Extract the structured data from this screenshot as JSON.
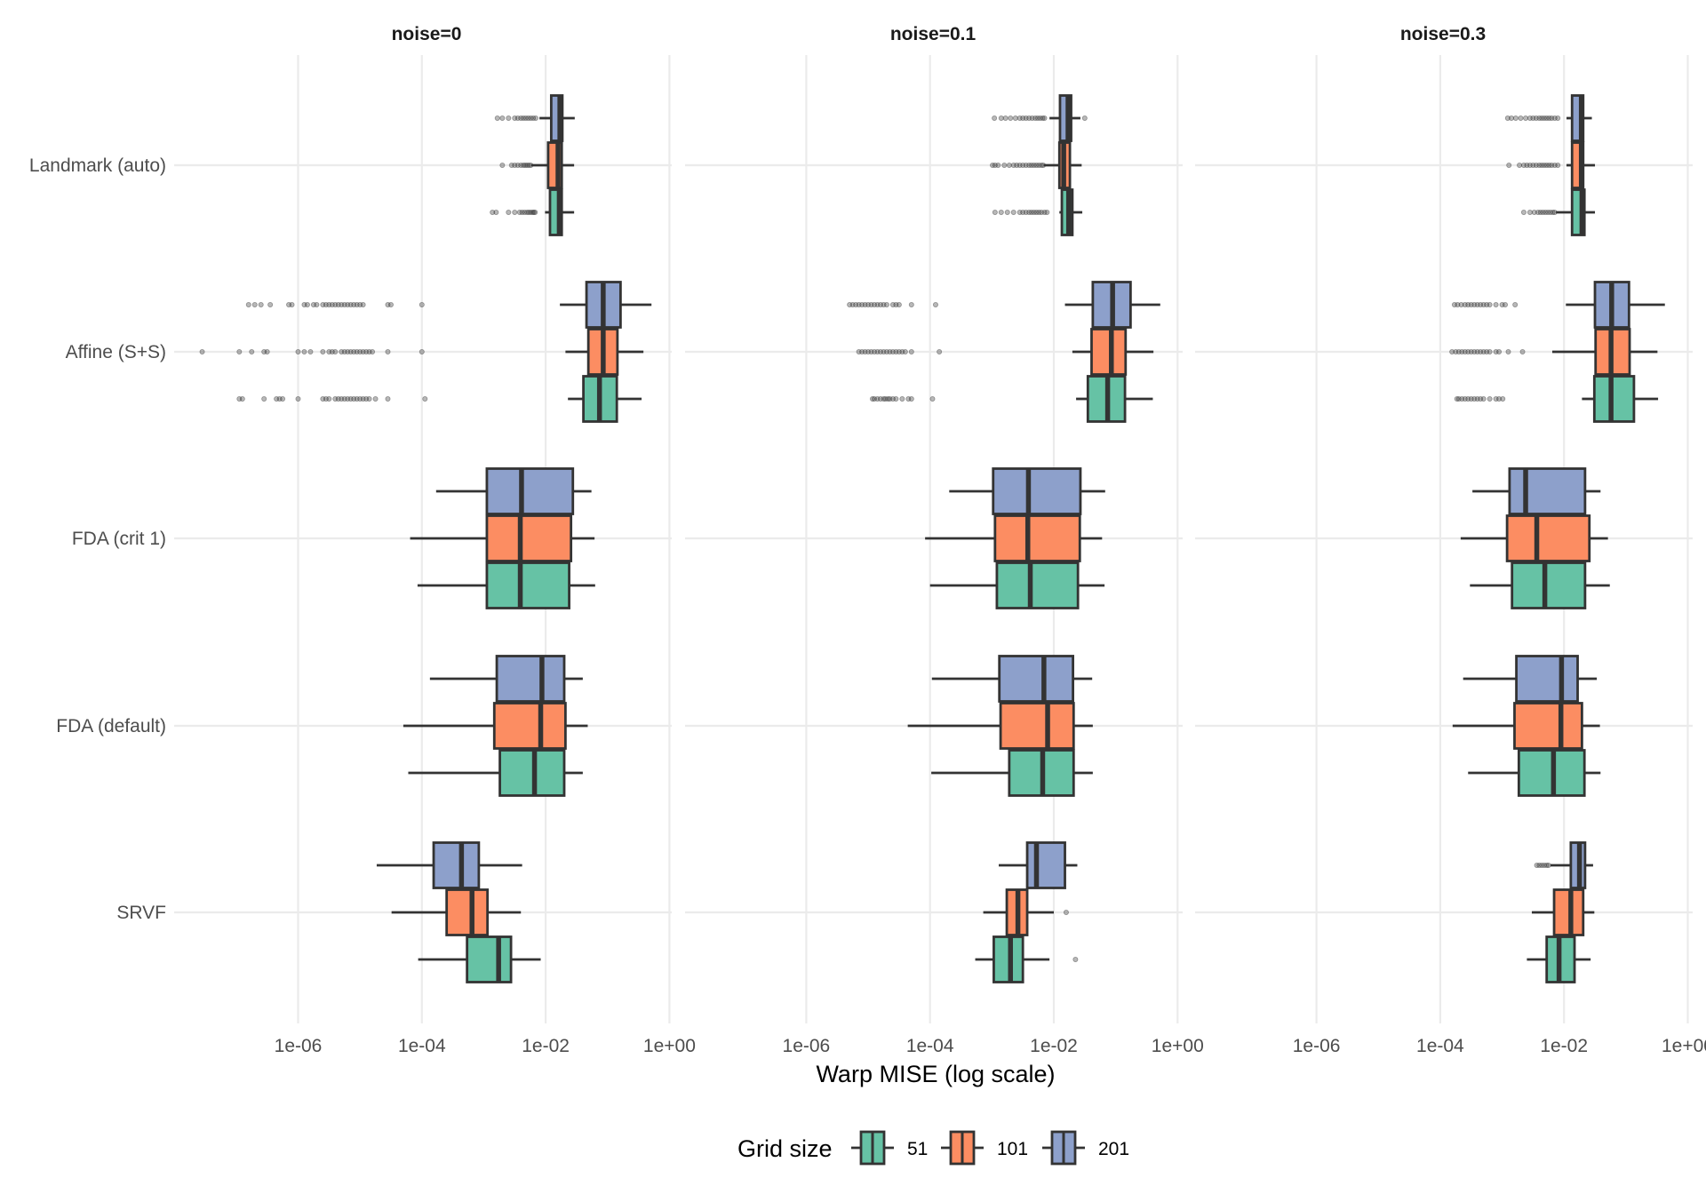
{
  "chart_data": {
    "type": "boxplot",
    "orientation": "horizontal",
    "xlabel": "Warp MISE (log scale)",
    "ylabel": "",
    "x_scale": "log10",
    "x_ticks": [
      "1e-06",
      "1e-04",
      "1e-02",
      "1e+00"
    ],
    "x_tick_values": [
      -6,
      -4,
      -2,
      0
    ],
    "xlim_log10": [
      -8.0,
      0.1
    ],
    "grid": true,
    "facets": [
      "noise=0",
      "noise=0.1",
      "noise=0.3"
    ],
    "categories": [
      "Landmark (auto)",
      "Affine (S+S)",
      "FDA (crit 1)",
      "FDA (default)",
      "SRVF"
    ],
    "legend": {
      "title": "Grid size",
      "position": "bottom",
      "entries": [
        {
          "label": "51",
          "color": "#66c2a5"
        },
        {
          "label": "101",
          "color": "#fc8d62"
        },
        {
          "label": "201",
          "color": "#8da0cb"
        }
      ]
    },
    "note": "box stats given as log10(Warp MISE): [whisker_low, q1, median, q3, whisker_high]; outliers as log10 values",
    "panels": [
      {
        "facet": "noise=0",
        "groups": {
          "Landmark (auto)": {
            "51": {
              "stats": [
                -2.01,
                -1.93,
                -1.78,
                -1.74,
                -1.54
              ],
              "outliers": [
                -2.86,
                -2.8,
                -2.6,
                -2.5,
                -2.42,
                -2.38,
                -2.34,
                -2.3,
                -2.27,
                -2.24,
                -2.21,
                -2.19,
                -2.17
              ]
            },
            "101": {
              "stats": [
                -2.23,
                -1.96,
                -1.8,
                -1.74,
                -1.54
              ],
              "outliers": [
                -2.7,
                -2.55,
                -2.5,
                -2.45,
                -2.4,
                -2.36,
                -2.33,
                -2.3,
                -2.27,
                -2.24
              ]
            },
            "201": {
              "stats": [
                -2.1,
                -1.91,
                -1.77,
                -1.73,
                -1.53
              ],
              "outliers": [
                -2.78,
                -2.7,
                -2.6,
                -2.5,
                -2.45,
                -2.4,
                -2.36,
                -2.32,
                -2.28,
                -2.24,
                -2.2,
                -2.16
              ]
            }
          },
          "Affine (S+S)": {
            "51": {
              "stats": [
                -1.64,
                -1.39,
                -1.13,
                -0.85,
                -0.45
              ],
              "outliers": [
                -6.95,
                -6.9,
                -6.55,
                -6.35,
                -6.3,
                -6.25,
                -6.0,
                -5.6,
                -5.55,
                -5.5,
                -5.4,
                -5.35,
                -5.3,
                -5.25,
                -5.2,
                -5.15,
                -5.1,
                -5.05,
                -5.0,
                -4.95,
                -4.9,
                -4.85,
                -4.75,
                -4.55,
                -3.95
              ]
            },
            "101": {
              "stats": [
                -1.68,
                -1.31,
                -1.07,
                -0.84,
                -0.42
              ],
              "outliers": [
                -7.55,
                -6.95,
                -6.75,
                -6.55,
                -6.5,
                -6.0,
                -5.9,
                -5.8,
                -5.6,
                -5.5,
                -5.45,
                -5.4,
                -5.3,
                -5.25,
                -5.2,
                -5.15,
                -5.1,
                -5.05,
                -5.0,
                -4.95,
                -4.9,
                -4.85,
                -4.8,
                -4.55,
                -4.0
              ]
            },
            "201": {
              "stats": [
                -1.77,
                -1.34,
                -1.07,
                -0.79,
                -0.29
              ],
              "outliers": [
                -6.8,
                -6.7,
                -6.6,
                -6.45,
                -6.15,
                -6.1,
                -5.9,
                -5.85,
                -5.75,
                -5.7,
                -5.6,
                -5.55,
                -5.5,
                -5.45,
                -5.4,
                -5.35,
                -5.3,
                -5.25,
                -5.2,
                -5.15,
                -5.1,
                -5.05,
                -5.0,
                -4.95,
                -4.55,
                -4.5,
                -4.0
              ]
            }
          },
          "FDA (crit 1)": {
            "51": {
              "stats": [
                -4.07,
                -2.95,
                -2.41,
                -1.62,
                -1.2
              ],
              "outliers": []
            },
            "101": {
              "stats": [
                -4.19,
                -2.95,
                -2.41,
                -1.59,
                -1.21
              ],
              "outliers": []
            },
            "201": {
              "stats": [
                -3.77,
                -2.95,
                -2.39,
                -1.56,
                -1.26
              ],
              "outliers": []
            }
          },
          "FDA (default)": {
            "51": {
              "stats": [
                -4.22,
                -2.74,
                -2.18,
                -1.7,
                -1.4
              ],
              "outliers": []
            },
            "101": {
              "stats": [
                -4.3,
                -2.83,
                -2.08,
                -1.68,
                -1.32
              ],
              "outliers": []
            },
            "201": {
              "stats": [
                -3.87,
                -2.79,
                -2.06,
                -1.7,
                -1.4
              ],
              "outliers": []
            }
          },
          "SRVF": {
            "51": {
              "stats": [
                -4.06,
                -3.27,
                -2.76,
                -2.56,
                -2.08
              ],
              "outliers": []
            },
            "101": {
              "stats": [
                -4.49,
                -3.6,
                -3.19,
                -2.94,
                -2.4
              ],
              "outliers": []
            },
            "201": {
              "stats": [
                -4.73,
                -3.81,
                -3.36,
                -3.08,
                -2.38
              ],
              "outliers": []
            }
          }
        }
      },
      {
        "facet": "noise=0.1",
        "groups": {
          "Landmark (auto)": {
            "51": {
              "stats": [
                -1.91,
                -1.87,
                -1.76,
                -1.7,
                -1.54
              ],
              "outliers": [
                -2.95,
                -2.85,
                -2.75,
                -2.65,
                -2.55,
                -2.5,
                -2.45,
                -2.4,
                -2.36,
                -2.32,
                -2.28,
                -2.24,
                -2.2,
                -2.15,
                -2.11
              ]
            },
            "101": {
              "stats": [
                -2.16,
                -1.91,
                -1.84,
                -1.74,
                -1.55
              ],
              "outliers": [
                -2.99,
                -2.95,
                -2.9,
                -2.8,
                -2.72,
                -2.65,
                -2.6,
                -2.55,
                -2.5,
                -2.45,
                -2.4,
                -2.36,
                -2.32,
                -2.28,
                -2.24,
                -2.2,
                -2.17
              ]
            },
            "201": {
              "stats": [
                -2.07,
                -1.9,
                -1.77,
                -1.72,
                -1.57
              ],
              "outliers": [
                -2.96,
                -2.85,
                -2.78,
                -2.7,
                -2.62,
                -2.55,
                -2.5,
                -2.45,
                -2.4,
                -2.35,
                -2.3,
                -2.26,
                -2.22,
                -2.18,
                -2.15,
                -1.5
              ]
            }
          },
          "Affine (S+S)": {
            "51": {
              "stats": [
                -1.64,
                -1.45,
                -1.13,
                -0.85,
                -0.4
              ],
              "outliers": [
                -4.93,
                -4.9,
                -4.85,
                -4.8,
                -4.75,
                -4.72,
                -4.68,
                -4.65,
                -4.6,
                -4.55,
                -4.45,
                -4.35,
                -4.3,
                -3.96
              ]
            },
            "101": {
              "stats": [
                -1.7,
                -1.39,
                -1.07,
                -0.84,
                -0.39
              ],
              "outliers": [
                -5.15,
                -5.1,
                -5.05,
                -5.0,
                -4.95,
                -4.9,
                -4.85,
                -4.8,
                -4.75,
                -4.7,
                -4.65,
                -4.6,
                -4.55,
                -4.5,
                -4.45,
                -4.4,
                -4.3,
                -3.85
              ]
            },
            "201": {
              "stats": [
                -1.82,
                -1.37,
                -1.05,
                -0.76,
                -0.28
              ],
              "outliers": [
                -5.3,
                -5.25,
                -5.2,
                -5.15,
                -5.1,
                -5.05,
                -5.0,
                -4.95,
                -4.9,
                -4.85,
                -4.8,
                -4.75,
                -4.7,
                -4.6,
                -4.55,
                -4.5,
                -4.3,
                -3.91
              ]
            }
          },
          "FDA (crit 1)": {
            "51": {
              "stats": [
                -4.0,
                -2.92,
                -2.38,
                -1.61,
                -1.18
              ],
              "outliers": []
            },
            "101": {
              "stats": [
                -4.08,
                -2.95,
                -2.42,
                -1.58,
                -1.22
              ],
              "outliers": []
            },
            "201": {
              "stats": [
                -3.69,
                -2.98,
                -2.41,
                -1.57,
                -1.17
              ],
              "outliers": []
            }
          },
          "FDA (default)": {
            "51": {
              "stats": [
                -3.98,
                -2.72,
                -2.18,
                -1.68,
                -1.37
              ],
              "outliers": []
            },
            "101": {
              "stats": [
                -4.36,
                -2.86,
                -2.1,
                -1.68,
                -1.37
              ],
              "outliers": []
            },
            "201": {
              "stats": [
                -3.97,
                -2.88,
                -2.16,
                -1.69,
                -1.38
              ],
              "outliers": []
            }
          },
          "SRVF": {
            "51": {
              "stats": [
                -3.27,
                -2.97,
                -2.7,
                -2.5,
                -2.07
              ],
              "outliers": [
                -1.65
              ]
            },
            "101": {
              "stats": [
                -3.14,
                -2.76,
                -2.58,
                -2.43,
                -2.0
              ],
              "outliers": [
                -1.8
              ]
            },
            "201": {
              "stats": [
                -2.89,
                -2.43,
                -2.28,
                -1.82,
                -1.62
              ],
              "outliers": []
            }
          }
        }
      },
      {
        "facet": "noise=0.3",
        "groups": {
          "Landmark (auto)": {
            "51": {
              "stats": [
                -2.13,
                -1.87,
                -1.71,
                -1.67,
                -1.5
              ],
              "outliers": [
                -2.65,
                -2.55,
                -2.48,
                -2.42,
                -2.38,
                -2.34,
                -2.3,
                -2.26,
                -2.22,
                -2.18,
                -2.15
              ]
            },
            "101": {
              "stats": [
                -1.96,
                -1.87,
                -1.72,
                -1.69,
                -1.5
              ],
              "outliers": [
                -2.89,
                -2.72,
                -2.65,
                -2.6,
                -2.55,
                -2.5,
                -2.45,
                -2.4,
                -2.36,
                -2.32,
                -2.28,
                -2.24,
                -2.2,
                -2.15,
                -2.1
              ]
            },
            "201": {
              "stats": [
                -1.96,
                -1.87,
                -1.72,
                -1.69,
                -1.55
              ],
              "outliers": [
                -2.91,
                -2.85,
                -2.78,
                -2.7,
                -2.62,
                -2.55,
                -2.5,
                -2.45,
                -2.4,
                -2.36,
                -2.32,
                -2.28,
                -2.24,
                -2.2,
                -2.15,
                -2.1
              ]
            }
          },
          "Affine (S+S)": {
            "51": {
              "stats": [
                -1.71,
                -1.51,
                -1.24,
                -0.87,
                -0.48
              ],
              "outliers": [
                -3.73,
                -3.7,
                -3.65,
                -3.6,
                -3.55,
                -3.5,
                -3.45,
                -3.4,
                -3.35,
                -3.3,
                -3.2,
                -3.1,
                -3.05,
                -2.99
              ]
            },
            "101": {
              "stats": [
                -2.19,
                -1.49,
                -1.24,
                -0.94,
                -0.49
              ],
              "outliers": [
                -3.81,
                -3.75,
                -3.7,
                -3.65,
                -3.6,
                -3.55,
                -3.5,
                -3.45,
                -3.4,
                -3.35,
                -3.3,
                -3.25,
                -3.2,
                -3.1,
                -3.05,
                -2.9,
                -2.67
              ]
            },
            "201": {
              "stats": [
                -1.97,
                -1.5,
                -1.23,
                -0.95,
                -0.37
              ],
              "outliers": [
                -3.77,
                -3.72,
                -3.66,
                -3.6,
                -3.55,
                -3.5,
                -3.45,
                -3.4,
                -3.35,
                -3.3,
                -3.25,
                -3.2,
                -3.1,
                -3.0,
                -2.95,
                -2.79
              ]
            }
          },
          "FDA (crit 1)": {
            "51": {
              "stats": [
                -3.52,
                -2.84,
                -2.31,
                -1.66,
                -1.26
              ],
              "outliers": []
            },
            "101": {
              "stats": [
                -3.67,
                -2.92,
                -2.44,
                -1.59,
                -1.29
              ],
              "outliers": []
            },
            "201": {
              "stats": [
                -3.48,
                -2.88,
                -2.62,
                -1.66,
                -1.41
              ],
              "outliers": []
            }
          },
          "FDA (default)": {
            "51": {
              "stats": [
                -3.55,
                -2.73,
                -2.17,
                -1.67,
                -1.41
              ],
              "outliers": []
            },
            "101": {
              "stats": [
                -3.8,
                -2.8,
                -2.05,
                -1.71,
                -1.42
              ],
              "outliers": []
            },
            "201": {
              "stats": [
                -3.63,
                -2.77,
                -2.04,
                -1.78,
                -1.47
              ],
              "outliers": []
            }
          },
          "SRVF": {
            "51": {
              "stats": [
                -2.6,
                -2.28,
                -2.08,
                -1.83,
                -1.57
              ],
              "outliers": []
            },
            "101": {
              "stats": [
                -2.52,
                -2.16,
                -1.89,
                -1.69,
                -1.51
              ],
              "outliers": []
            },
            "201": {
              "stats": [
                -2.22,
                -1.89,
                -1.75,
                -1.66,
                -1.53
              ],
              "outliers": [
                -2.44,
                -2.4,
                -2.36,
                -2.32,
                -2.28,
                -2.25
              ]
            }
          }
        }
      }
    ]
  }
}
